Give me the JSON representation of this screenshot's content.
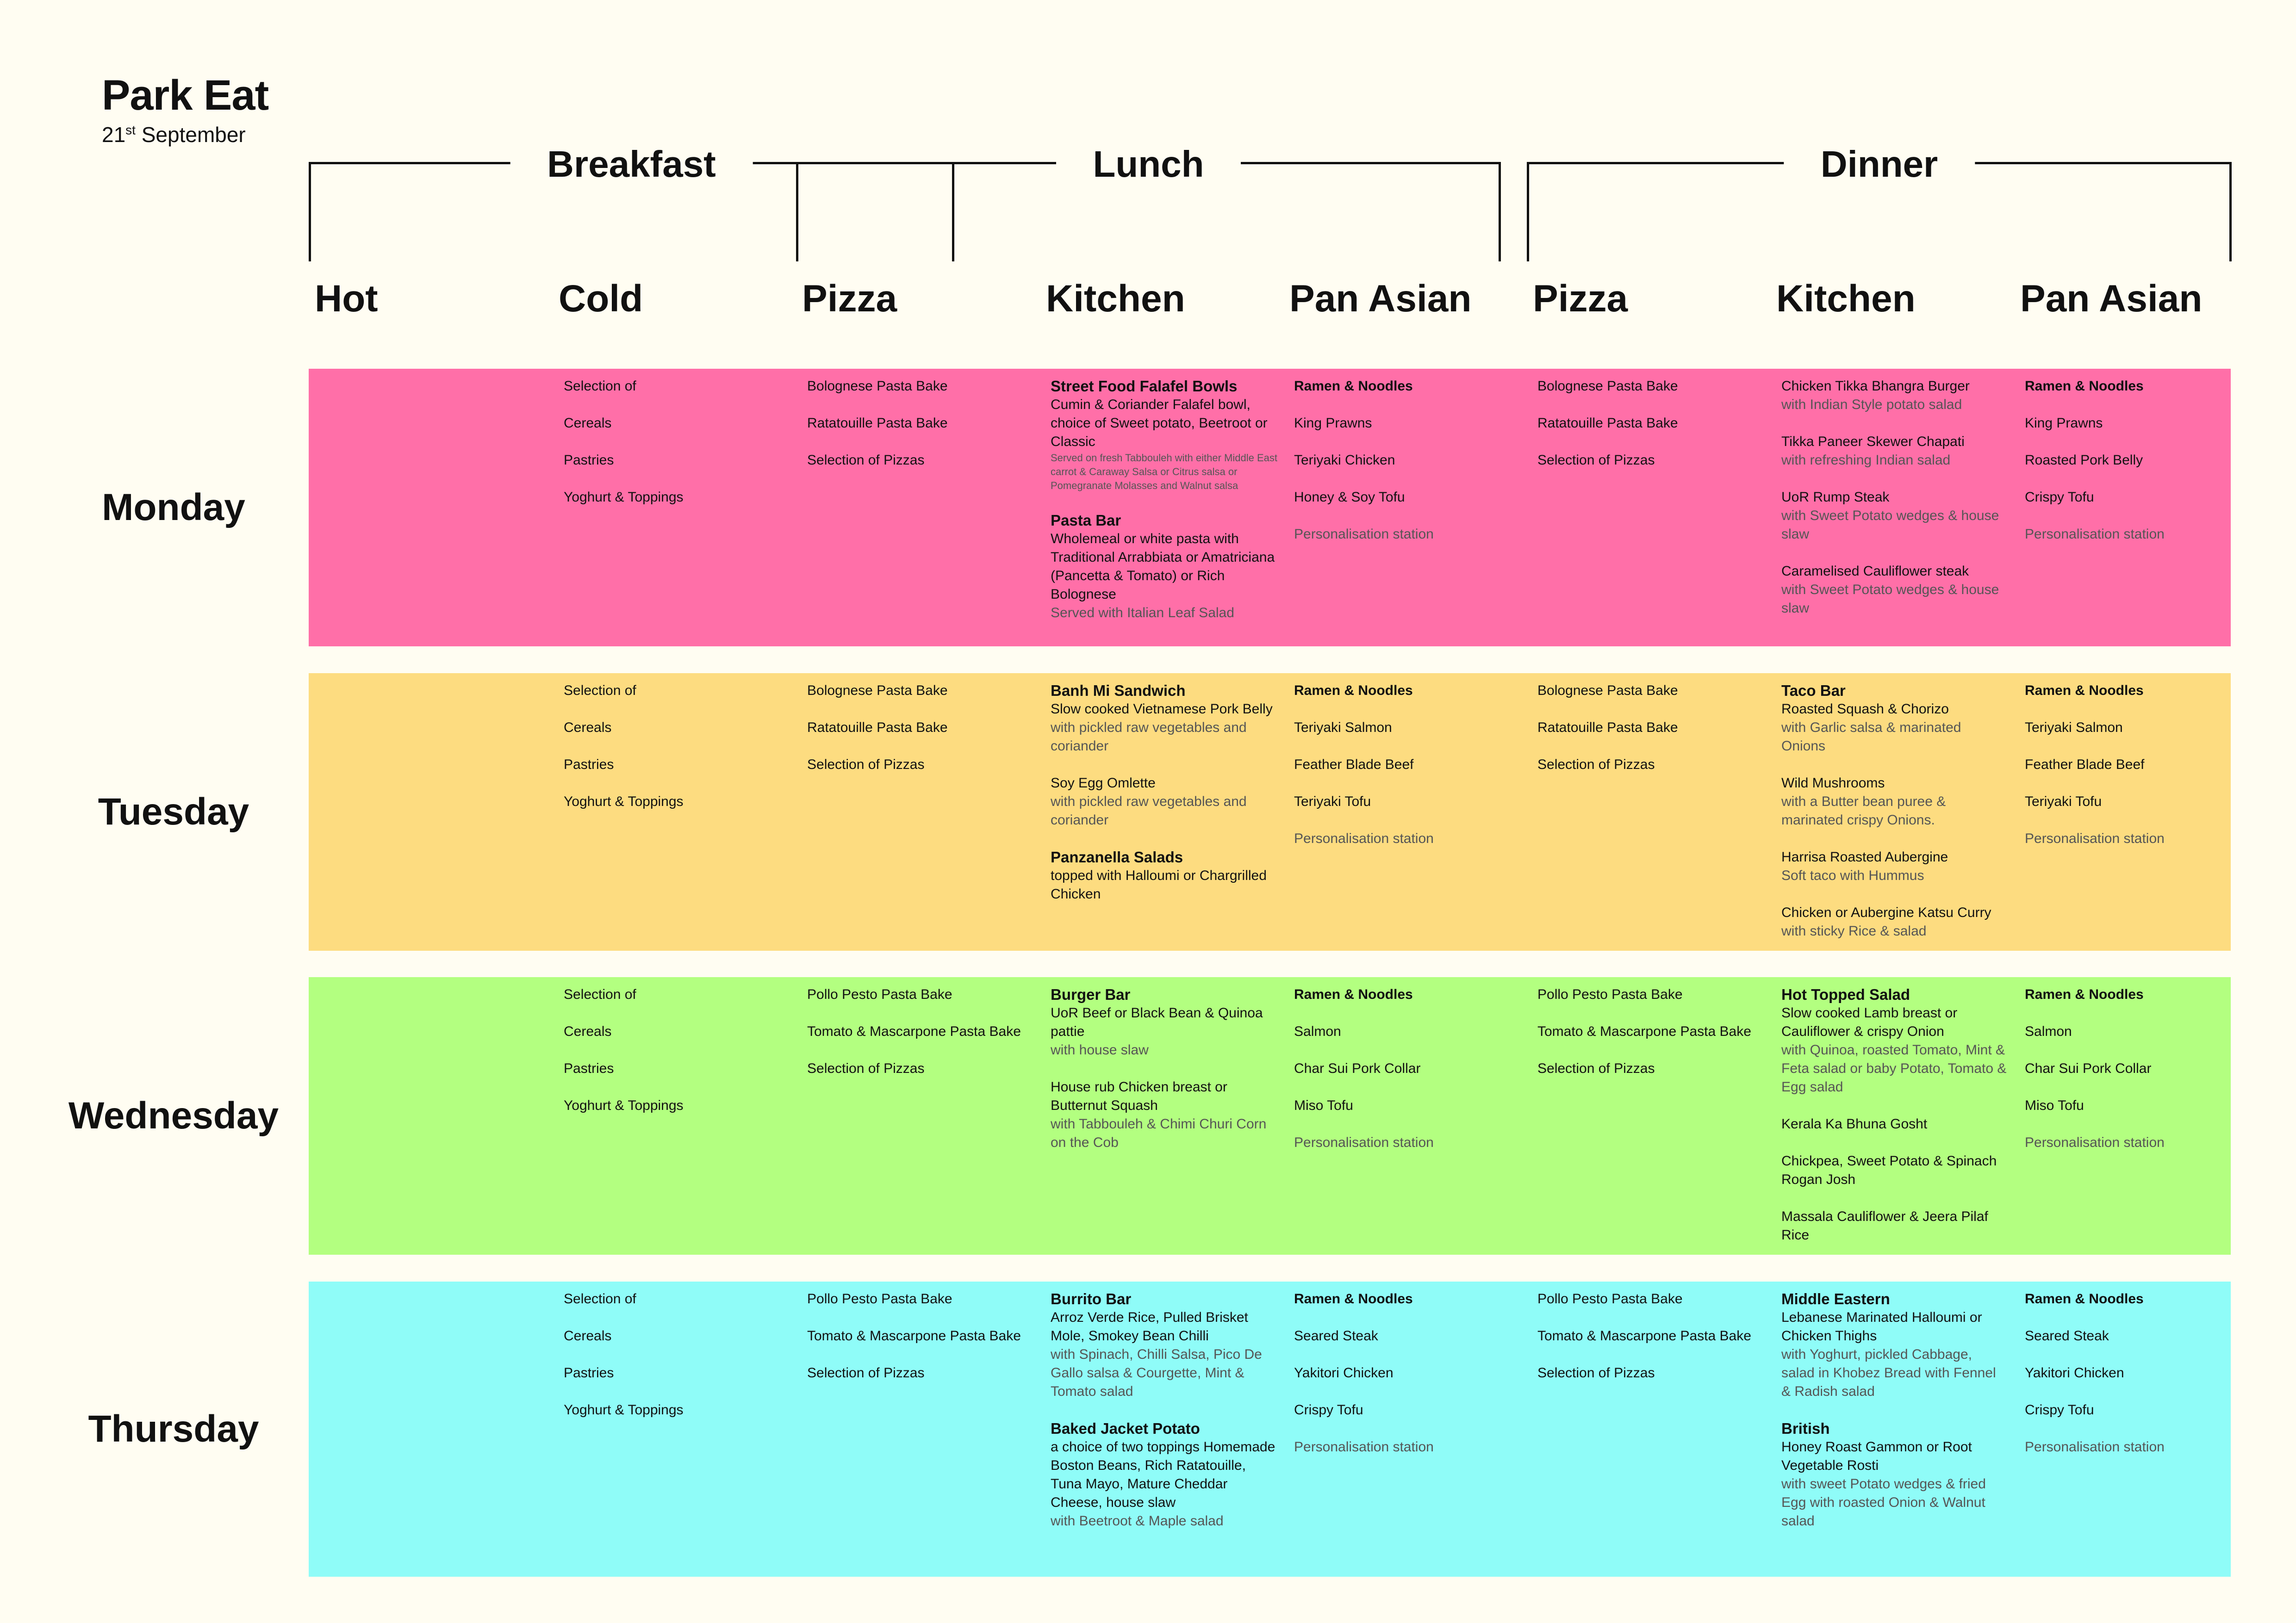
{
  "header": {
    "title": "Park Eat",
    "date_day": "21",
    "date_suffix": "st",
    "date_month": "September"
  },
  "groups": {
    "breakfast": "Breakfast",
    "lunch": "Lunch",
    "dinner": "Dinner"
  },
  "columns": [
    "Hot",
    "Cold",
    "Pizza",
    "Kitchen",
    "Pan Asian",
    "Pizza",
    "Kitchen",
    "Pan Asian"
  ],
  "colors": {
    "background": "#fffdf2",
    "monday": "#ff6fa8",
    "tuesday": "#fddc80",
    "wednesday": "#b3ff80",
    "thursday": "#8ffcf8"
  },
  "days": [
    {
      "name": "Monday",
      "cold": [
        "Selection of",
        "Cereals",
        "Pastries",
        "Yoghurt & Toppings"
      ],
      "lunch_pizza": [
        "Bolognese Pasta Bake",
        "Ratatouille Pasta Bake",
        "Selection of Pizzas"
      ],
      "lunch_kitchen": [
        {
          "h": "Street Food Falafel Bowls",
          "b": "Cumin & Coriander Falafel bowl, choice of Sweet potato, Beetroot or Classic",
          "s": "Served on fresh Tabbouleh with either Middle East carrot & Caraway Salsa or Citrus salsa or Pomegranate Molasses and Walnut salsa"
        },
        {
          "h": "Pasta Bar",
          "b": "Wholemeal or white pasta with Traditional Arrabbiata or Amatriciana (Pancetta & Tomato) or Rich Bolognese",
          "m": "Served with Italian Leaf Salad"
        }
      ],
      "lunch_asian": [
        "Ramen & Noodles",
        "King Prawns",
        "Teriyaki Chicken",
        "Honey & Soy Tofu",
        "Personalisation station"
      ],
      "dinner_pizza": [
        "Bolognese Pasta Bake",
        "Ratatouille Pasta Bake",
        "Selection of Pizzas"
      ],
      "dinner_kitchen": [
        {
          "b": "Chicken Tikka Bhangra Burger",
          "m": "with Indian Style potato salad"
        },
        {
          "b": "Tikka Paneer Skewer Chapati",
          "m": "with refreshing Indian salad"
        },
        {
          "b": "UoR Rump Steak",
          "m": "with Sweet Potato wedges & house slaw"
        },
        {
          "b": "Caramelised Cauliflower steak",
          "m": "with Sweet Potato wedges & house slaw"
        }
      ],
      "dinner_asian": [
        "Ramen & Noodles",
        "King Prawns",
        "Roasted Pork Belly",
        "Crispy Tofu",
        "Personalisation station"
      ]
    },
    {
      "name": "Tuesday",
      "cold": [
        "Selection of",
        "Cereals",
        "Pastries",
        "Yoghurt & Toppings"
      ],
      "lunch_pizza": [
        "Bolognese Pasta Bake",
        "Ratatouille Pasta Bake",
        "Selection of Pizzas"
      ],
      "lunch_kitchen": [
        {
          "h": "Banh Mi Sandwich",
          "b": "Slow cooked Vietnamese Pork Belly",
          "m": "with pickled raw vegetables and coriander"
        },
        {
          "b": "Soy Egg Omlette",
          "m": "with pickled raw vegetables and coriander"
        },
        {
          "h": "Panzanella Salads",
          "b": "topped with Halloumi or Chargrilled Chicken"
        }
      ],
      "lunch_asian": [
        "Ramen & Noodles",
        "Teriyaki Salmon",
        "Feather Blade Beef",
        "Teriyaki Tofu",
        "Personalisation station"
      ],
      "dinner_pizza": [
        "Bolognese Pasta Bake",
        "Ratatouille Pasta Bake",
        "Selection of Pizzas"
      ],
      "dinner_kitchen": [
        {
          "h": "Taco Bar",
          "b": "Roasted Squash & Chorizo",
          "m": "with Garlic salsa & marinated Onions"
        },
        {
          "b": "Wild Mushrooms",
          "m": "with a Butter bean puree & marinated crispy Onions."
        },
        {
          "b": "Harrisa Roasted Aubergine",
          "m": "Soft taco with Hummus"
        },
        {
          "b": "Chicken or Aubergine Katsu Curry",
          "m": "with sticky Rice & salad"
        }
      ],
      "dinner_asian": [
        "Ramen & Noodles",
        "Teriyaki Salmon",
        "Feather Blade Beef",
        "Teriyaki Tofu",
        "Personalisation station"
      ]
    },
    {
      "name": "Wednesday",
      "cold": [
        "Selection of",
        "Cereals",
        "Pastries",
        "Yoghurt & Toppings"
      ],
      "lunch_pizza": [
        "Pollo Pesto Pasta Bake",
        "Tomato & Mascarpone Pasta Bake",
        "Selection of Pizzas"
      ],
      "lunch_kitchen": [
        {
          "h": "Burger Bar",
          "b": "UoR Beef or Black Bean & Quinoa pattie",
          "m": "with house slaw"
        },
        {
          "b": "House rub Chicken breast or Butternut Squash",
          "m": "with Tabbouleh & Chimi Churi Corn on the Cob"
        }
      ],
      "lunch_asian": [
        "Ramen & Noodles",
        "Salmon",
        "Char Sui Pork Collar",
        "Miso Tofu",
        "Personalisation station"
      ],
      "dinner_pizza": [
        "Pollo Pesto Pasta Bake",
        "Tomato & Mascarpone Pasta Bake",
        "Selection of Pizzas"
      ],
      "dinner_kitchen": [
        {
          "h": "Hot Topped Salad",
          "b": "Slow cooked Lamb breast or Cauliflower & crispy Onion",
          "m": "with Quinoa, roasted Tomato, Mint & Feta salad or baby Potato, Tomato & Egg salad"
        },
        {
          "b": "Kerala Ka Bhuna Gosht"
        },
        {
          "b": "Chickpea, Sweet Potato & Spinach Rogan Josh"
        },
        {
          "b": "Massala Cauliflower & Jeera Pilaf Rice"
        }
      ],
      "dinner_asian": [
        "Ramen & Noodles",
        "Salmon",
        "Char Sui Pork Collar",
        "Miso Tofu",
        "Personalisation station"
      ]
    },
    {
      "name": "Thursday",
      "cold": [
        "Selection of",
        "Cereals",
        "Pastries",
        "Yoghurt & Toppings"
      ],
      "lunch_pizza": [
        "Pollo Pesto Pasta Bake",
        "Tomato & Mascarpone Pasta Bake",
        "Selection of Pizzas"
      ],
      "lunch_kitchen": [
        {
          "h": "Burrito Bar",
          "b": "Arroz Verde Rice, Pulled Brisket Mole, Smokey Bean Chilli",
          "m": "with Spinach, Chilli Salsa, Pico De Gallo salsa & Courgette, Mint & Tomato salad"
        },
        {
          "h": "Baked Jacket Potato",
          "b": "a choice of two toppings Homemade Boston Beans, Rich Ratatouille, Tuna Mayo, Mature Cheddar Cheese, house slaw",
          "m": "with Beetroot & Maple salad"
        }
      ],
      "lunch_asian": [
        "Ramen & Noodles",
        "Seared Steak",
        "Yakitori Chicken",
        "Crispy Tofu",
        "Personalisation station"
      ],
      "dinner_pizza": [
        "Pollo Pesto Pasta Bake",
        "Tomato & Mascarpone Pasta Bake",
        "Selection of Pizzas"
      ],
      "dinner_kitchen": [
        {
          "h": "Middle Eastern",
          "b": "Lebanese Marinated Halloumi or Chicken Thighs",
          "m": "with Yoghurt, pickled Cabbage, salad in Khobez Bread with Fennel & Radish salad"
        },
        {
          "h": "British",
          "b": "Honey Roast Gammon or Root Vegetable Rosti",
          "m": "with sweet Potato wedges & fried Egg with roasted Onion & Walnut salad"
        }
      ],
      "dinner_asian": [
        "Ramen & Noodles",
        "Seared Steak",
        "Yakitori Chicken",
        "Crispy Tofu",
        "Personalisation station"
      ]
    }
  ]
}
